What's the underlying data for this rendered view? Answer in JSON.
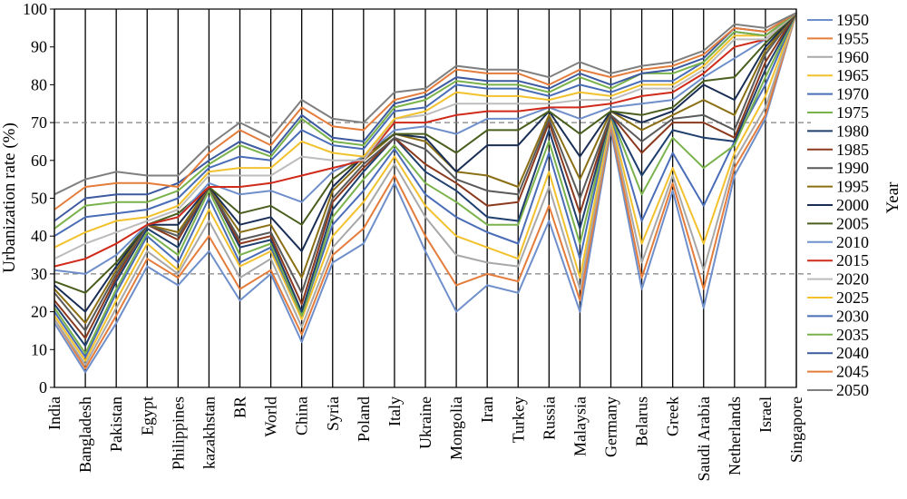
{
  "chart_data": {
    "type": "line",
    "title": "",
    "ylabel": "Urbanization rate (%)",
    "xlabel": "",
    "legend_title": "Year",
    "legend_position": "right",
    "ylim": [
      0,
      100
    ],
    "yticks": [
      0,
      10,
      20,
      30,
      40,
      50,
      60,
      70,
      80,
      90,
      100
    ],
    "reference_lines": [
      30,
      70
    ],
    "grid": "vertical",
    "categories": [
      "India",
      "Bangladesh",
      "Pakistan",
      "Egypt",
      "Philippines",
      "kazakhstan",
      "BR",
      "World",
      "China",
      "Syria",
      "Poland",
      "Italy",
      "Ukraine",
      "Mongolia",
      "Iran",
      "Turkey",
      "Russia",
      "Malaysia",
      "Germany",
      "Belarus",
      "Greek",
      "Saudi Arabia",
      "Netherlands",
      "Israel",
      "Singapore"
    ],
    "series": [
      {
        "name": "1950",
        "color": "#6F8FCB",
        "values": [
          17,
          4,
          17,
          32,
          27,
          36,
          23,
          30,
          12,
          33,
          38,
          54,
          36,
          20,
          27,
          25,
          44,
          20,
          68,
          26,
          52,
          21,
          56,
          71,
          99
        ]
      },
      {
        "name": "1955",
        "color": "#E47C3B",
        "values": [
          18,
          5,
          19,
          34,
          29,
          40,
          26,
          31,
          14,
          35,
          42,
          56,
          40,
          27,
          30,
          28,
          48,
          23,
          69,
          29,
          54,
          26,
          58,
          72,
          99
        ]
      },
      {
        "name": "1960",
        "color": "#A8A8A8",
        "values": [
          18,
          6,
          21,
          36,
          30,
          44,
          29,
          34,
          16,
          37,
          46,
          59,
          45,
          35,
          33,
          32,
          53,
          26,
          70,
          33,
          56,
          31,
          60,
          74,
          99
        ]
      },
      {
        "name": "1965",
        "color": "#F2C12E",
        "values": [
          19,
          7,
          23,
          38,
          31,
          47,
          32,
          36,
          18,
          40,
          49,
          61,
          48,
          40,
          37,
          34,
          57,
          29,
          71,
          38,
          58,
          38,
          62,
          77,
          99
        ]
      },
      {
        "name": "1970",
        "color": "#4A6DB8",
        "values": [
          20,
          8,
          25,
          40,
          33,
          50,
          33,
          37,
          19,
          43,
          52,
          63,
          51,
          45,
          41,
          38,
          62,
          34,
          72,
          44,
          62,
          48,
          65,
          80,
          99
        ]
      },
      {
        "name": "1975",
        "color": "#7AB24B",
        "values": [
          21,
          9,
          26,
          41,
          35,
          52,
          35,
          38,
          19,
          45,
          55,
          64,
          54,
          49,
          43,
          43,
          65,
          38,
          72,
          51,
          66,
          58,
          64,
          82,
          99
        ]
      },
      {
        "name": "1980",
        "color": "#1F3F6E",
        "values": [
          22,
          11,
          28,
          42,
          37,
          53,
          37,
          39,
          20,
          47,
          57,
          66,
          57,
          52,
          45,
          44,
          68,
          42,
          72,
          56,
          68,
          66,
          65,
          84,
          99
        ]
      },
      {
        "name": "1985",
        "color": "#8B3A1E",
        "values": [
          23,
          13,
          29,
          43,
          39,
          53,
          38,
          40,
          22,
          49,
          58,
          66,
          59,
          54,
          48,
          49,
          70,
          46,
          72,
          62,
          70,
          70,
          66,
          86,
          99
        ]
      },
      {
        "name": "1990",
        "color": "#5A5A5A",
        "values": [
          25,
          15,
          30,
          43,
          40,
          53,
          39,
          41,
          25,
          50,
          59,
          66,
          63,
          55,
          52,
          51,
          71,
          50,
          72,
          65,
          71,
          72,
          68,
          88,
          99
        ]
      },
      {
        "name": "1995",
        "color": "#8B6F14",
        "values": [
          26,
          17,
          31,
          43,
          41,
          53,
          41,
          43,
          29,
          52,
          60,
          67,
          65,
          57,
          56,
          53,
          72,
          55,
          73,
          68,
          72,
          76,
          72,
          89,
          99
        ]
      },
      {
        "name": "2000",
        "color": "#1A2E55",
        "values": [
          27,
          20,
          32,
          43,
          43,
          53,
          43,
          45,
          36,
          53,
          61,
          67,
          66,
          57,
          64,
          64,
          73,
          61,
          73,
          70,
          73,
          80,
          76,
          90,
          99
        ]
      },
      {
        "name": "2005",
        "color": "#4A5E1E",
        "values": [
          28,
          25,
          33,
          43,
          46,
          53,
          46,
          48,
          43,
          55,
          61,
          67,
          67,
          62,
          68,
          68,
          73,
          67,
          73,
          72,
          74,
          81,
          82,
          91,
          99
        ]
      },
      {
        "name": "2010",
        "color": "#6F8FCB",
        "values": [
          31,
          30,
          35,
          43,
          45,
          54,
          51,
          52,
          49,
          57,
          61,
          68,
          69,
          67,
          71,
          71,
          74,
          71,
          74,
          75,
          76,
          82,
          87,
          92,
          99
        ]
      },
      {
        "name": "2015",
        "color": "#D02A1A",
        "values": [
          32,
          34,
          38,
          43,
          45,
          53,
          53,
          54,
          56,
          58,
          60,
          70,
          70,
          72,
          73,
          73,
          74,
          74,
          75,
          77,
          78,
          83,
          90,
          92,
          99
        ]
      },
      {
        "name": "2020",
        "color": "#BDBDBD",
        "values": [
          34,
          38,
          41,
          44,
          47,
          56,
          56,
          56,
          61,
          60,
          60,
          71,
          72,
          75,
          75,
          75,
          75,
          76,
          76,
          79,
          79,
          84,
          92,
          92,
          99
        ]
      },
      {
        "name": "2025",
        "color": "#F2C12E",
        "values": [
          37,
          41,
          44,
          45,
          48,
          57,
          58,
          58,
          65,
          62,
          61,
          71,
          73,
          78,
          77,
          77,
          76,
          78,
          77,
          80,
          80,
          85,
          93,
          93,
          99
        ]
      },
      {
        "name": "2030",
        "color": "#4A6DB8",
        "values": [
          40,
          45,
          46,
          47,
          50,
          58,
          61,
          60,
          68,
          64,
          63,
          73,
          74,
          80,
          79,
          79,
          77,
          80,
          78,
          81,
          81,
          86,
          94,
          93,
          99
        ]
      },
      {
        "name": "2035",
        "color": "#7AB24B",
        "values": [
          42,
          48,
          49,
          49,
          52,
          59,
          64,
          61,
          71,
          65,
          64,
          74,
          76,
          81,
          80,
          80,
          78,
          82,
          79,
          83,
          83,
          86,
          94,
          93,
          99
        ]
      },
      {
        "name": "2040",
        "color": "#3D5AA0",
        "values": [
          44,
          50,
          51,
          51,
          54,
          60,
          65,
          62,
          72,
          66,
          65,
          75,
          77,
          82,
          81,
          81,
          79,
          83,
          80,
          83,
          84,
          87,
          95,
          94,
          99
        ]
      },
      {
        "name": "2045",
        "color": "#E47C3B",
        "values": [
          47,
          53,
          54,
          54,
          53,
          62,
          68,
          64,
          74,
          69,
          68,
          76,
          78,
          84,
          83,
          83,
          80,
          84,
          82,
          84,
          85,
          88,
          95,
          94,
          99
        ]
      },
      {
        "name": "2050",
        "color": "#7F7F7F",
        "values": [
          51,
          55,
          57,
          56,
          56,
          64,
          70,
          66,
          76,
          71,
          70,
          78,
          79,
          85,
          84,
          84,
          82,
          86,
          83,
          85,
          86,
          89,
          96,
          95,
          99
        ]
      }
    ]
  }
}
